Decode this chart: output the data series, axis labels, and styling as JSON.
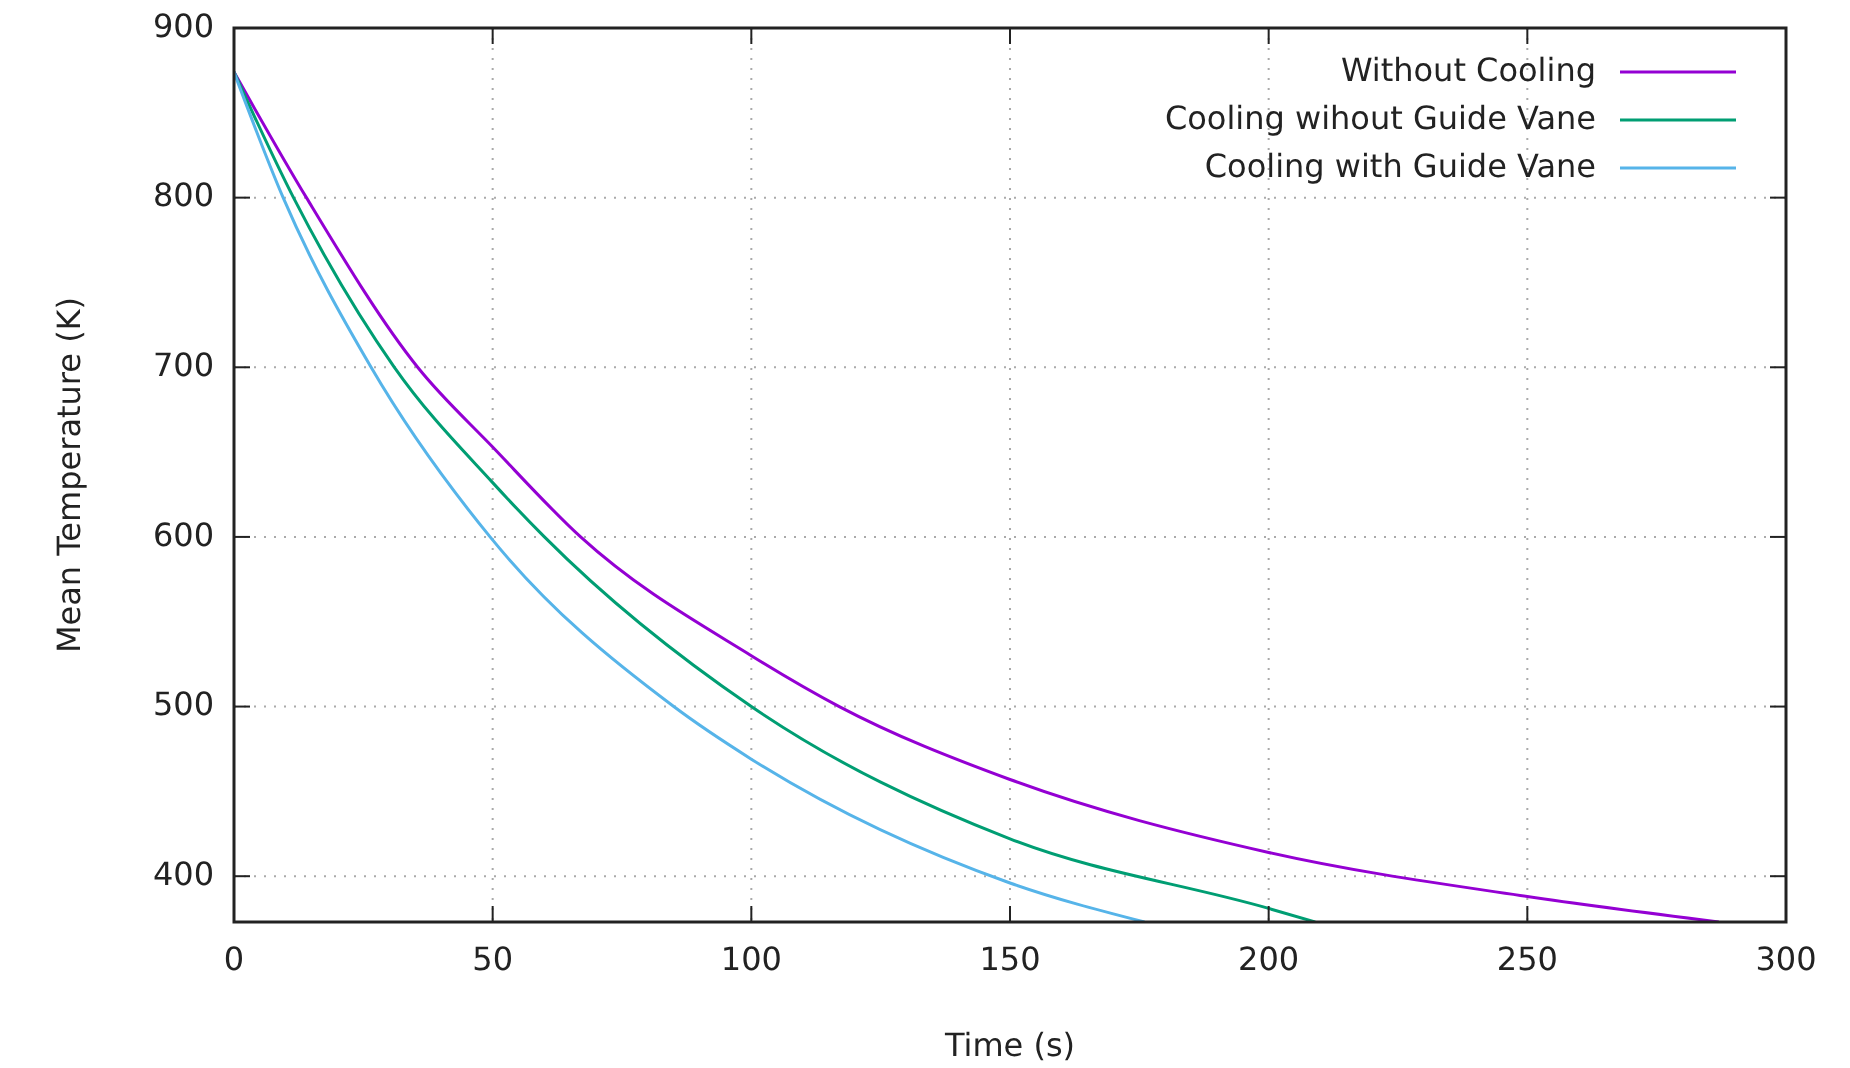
{
  "chart_data": {
    "type": "line",
    "xlabel": "Time (s)",
    "ylabel": "Mean Temperature (K)",
    "xlim": [
      0,
      300
    ],
    "xticks": [
      0,
      50,
      100,
      150,
      200,
      250,
      300
    ],
    "ylim": [
      373,
      900
    ],
    "yticks": [
      400,
      500,
      600,
      700,
      800,
      900
    ],
    "grid": true,
    "legend": "top right",
    "marker": "none",
    "line_style": "solid",
    "series": [
      {
        "name": "Without Cooling",
        "color": "#9400d3",
        "x": [
          0,
          14,
          35.5,
          50,
          67,
          100,
          117,
          150,
          200,
          250,
          287
        ],
        "values": [
          874,
          800,
          700,
          653,
          600,
          530,
          500,
          457,
          414,
          388,
          373
        ]
      },
      {
        "name": "Cooling wihout Guide Vane",
        "color": "#009e73",
        "x": [
          0,
          11.5,
          31,
          50,
          60,
          100,
          150,
          200,
          209
        ],
        "values": [
          874,
          800,
          700,
          632,
          600,
          500,
          422,
          381,
          373
        ]
      },
      {
        "name": "Cooling with Guide Vane",
        "color": "#56b4e9",
        "x": [
          0,
          9.5,
          26.5,
          49.5,
          85,
          100,
          150,
          176
        ],
        "values": [
          874,
          800,
          700,
          600,
          500,
          469,
          396,
          373
        ]
      }
    ]
  }
}
